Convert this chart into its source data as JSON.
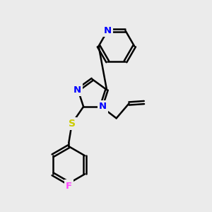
{
  "bg_color": "#ebebeb",
  "atom_colors": {
    "N": "#0000ff",
    "S": "#cccc00",
    "F": "#ff44ff"
  },
  "bond_color": "#000000",
  "bond_width": 1.8,
  "font_size_atom": 9.5
}
